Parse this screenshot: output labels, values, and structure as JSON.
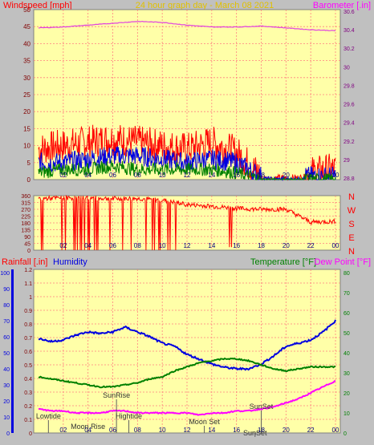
{
  "title": "24 hour graph day - March 08 2021",
  "colors": {
    "plot_bg": "#ffffa8",
    "frame_bg": "#c0c0c0",
    "grid": "#ff8080",
    "red": "#ff0000",
    "blue": "#0000e0",
    "green": "#008000",
    "magenta": "#ff00ff",
    "baro": "#e040e0"
  },
  "x_ticks": [
    "02",
    "04",
    "06",
    "08",
    "10",
    "12",
    "14",
    "16",
    "18",
    "20",
    "22",
    "00"
  ],
  "chart_data": [
    {
      "type": "line",
      "name": "wind-panel",
      "left_label": "Windspeed [mph]",
      "right_label": "Barometer [.in]",
      "left_ylim": [
        0,
        50
      ],
      "left_ticks": [
        "50",
        "45",
        "40",
        "35",
        "30",
        "25",
        "20",
        "15",
        "10",
        "5",
        "0"
      ],
      "right_ylim": [
        28.8,
        30.6
      ],
      "right_ticks": [
        "30.6",
        "30.4",
        "30.2",
        "30",
        "29.8",
        "29.6",
        "29.4",
        "29.2",
        "29",
        "28.8"
      ],
      "x": [
        0,
        2,
        4,
        6,
        8,
        10,
        12,
        14,
        16,
        18,
        20,
        22,
        24
      ],
      "series": [
        {
          "color": "red",
          "axis": "left",
          "values": [
            9,
            10,
            11,
            12,
            11,
            10,
            9,
            11,
            8,
            1,
            1,
            2,
            3
          ]
        },
        {
          "color": "blue",
          "axis": "left",
          "values": [
            5,
            5,
            6,
            7,
            7,
            6,
            5,
            6,
            5,
            1,
            0,
            1,
            1
          ]
        },
        {
          "color": "green",
          "axis": "left",
          "values": [
            2,
            3,
            3,
            4,
            3,
            3,
            3,
            3,
            2,
            0,
            0,
            0,
            0
          ]
        },
        {
          "color": "baro",
          "axis": "right",
          "values": [
            30.42,
            30.43,
            30.45,
            30.47,
            30.49,
            30.48,
            30.45,
            30.43,
            30.43,
            30.44,
            30.42,
            30.4,
            30.39
          ]
        }
      ]
    },
    {
      "type": "line",
      "name": "direction-panel",
      "left_ticks": [
        "360",
        "315",
        "270",
        "225",
        "180",
        "135",
        "90",
        "45",
        "0"
      ],
      "left_ylim": [
        0,
        360
      ],
      "right_ticks": [
        "N",
        "W",
        "S",
        "E",
        "N"
      ],
      "x": [
        0,
        2,
        4,
        6,
        8,
        10,
        12,
        14,
        16,
        18,
        20,
        22,
        24
      ],
      "series": [
        {
          "color": "red",
          "values": [
            340,
            345,
            345,
            340,
            340,
            330,
            300,
            290,
            275,
            270,
            270,
            185,
            190
          ]
        }
      ]
    },
    {
      "type": "line",
      "name": "bottom-panel",
      "label_rainfall": "Rainfall [.in]",
      "label_humidity": "Humidity",
      "label_temperature": "Temperature [°F]",
      "label_dewpoint": "Dew Point [°F]",
      "humidity_ticks": [
        "100",
        "90",
        "80",
        "70",
        "60",
        "50",
        "40",
        "30",
        "20",
        "10",
        "0"
      ],
      "rain_ticks": [
        "1.2",
        "1.1",
        "1",
        "0.9",
        "0.8",
        "0.7",
        "0.6",
        "0.5",
        "0.4",
        "0.3",
        "0.2",
        "0.1",
        "0"
      ],
      "temp_ticks": [
        "80",
        "70",
        "60",
        "50",
        "40",
        "30",
        "20",
        "10",
        "0"
      ],
      "x": [
        0,
        1,
        2,
        3,
        4,
        5,
        6,
        7,
        8,
        9,
        10,
        11,
        12,
        13,
        14,
        15,
        16,
        17,
        18,
        19,
        20,
        21,
        22,
        23,
        24
      ],
      "series": [
        {
          "color": "blue",
          "name": "Humidity",
          "axis": "humidity",
          "values": [
            59,
            57,
            58,
            61,
            63,
            62,
            63,
            66,
            63,
            60,
            56,
            54,
            49,
            46,
            43,
            41,
            40,
            40,
            43,
            48,
            54,
            56,
            58,
            63,
            70
          ]
        },
        {
          "color": "green",
          "name": "Temperature",
          "axis": "temp",
          "values": [
            28,
            27,
            26,
            25,
            24,
            23,
            23,
            24,
            25,
            27,
            28,
            31,
            33,
            35,
            36,
            37,
            37,
            36,
            34,
            32,
            31,
            32,
            33,
            33,
            33
          ]
        },
        {
          "color": "magenta",
          "name": "Dew Point",
          "axis": "temp",
          "values": [
            12,
            11,
            11,
            10,
            10,
            10,
            11,
            11,
            10,
            10,
            10,
            10,
            10,
            9,
            10,
            10,
            11,
            11,
            12,
            13,
            15,
            17,
            20,
            23,
            26
          ]
        }
      ],
      "events": [
        {
          "label": "Lowtide",
          "x": 0.8
        },
        {
          "label": "Moon Rise",
          "x": 4.0
        },
        {
          "label": "SunRise",
          "x": 6.3
        },
        {
          "label": "Hightide",
          "x": 7.3
        },
        {
          "label": "Moon Set",
          "x": 13.4
        },
        {
          "label": "SunSet",
          "x": 18.0
        },
        {
          "label": "SunSet",
          "x": 17.5
        }
      ]
    }
  ]
}
